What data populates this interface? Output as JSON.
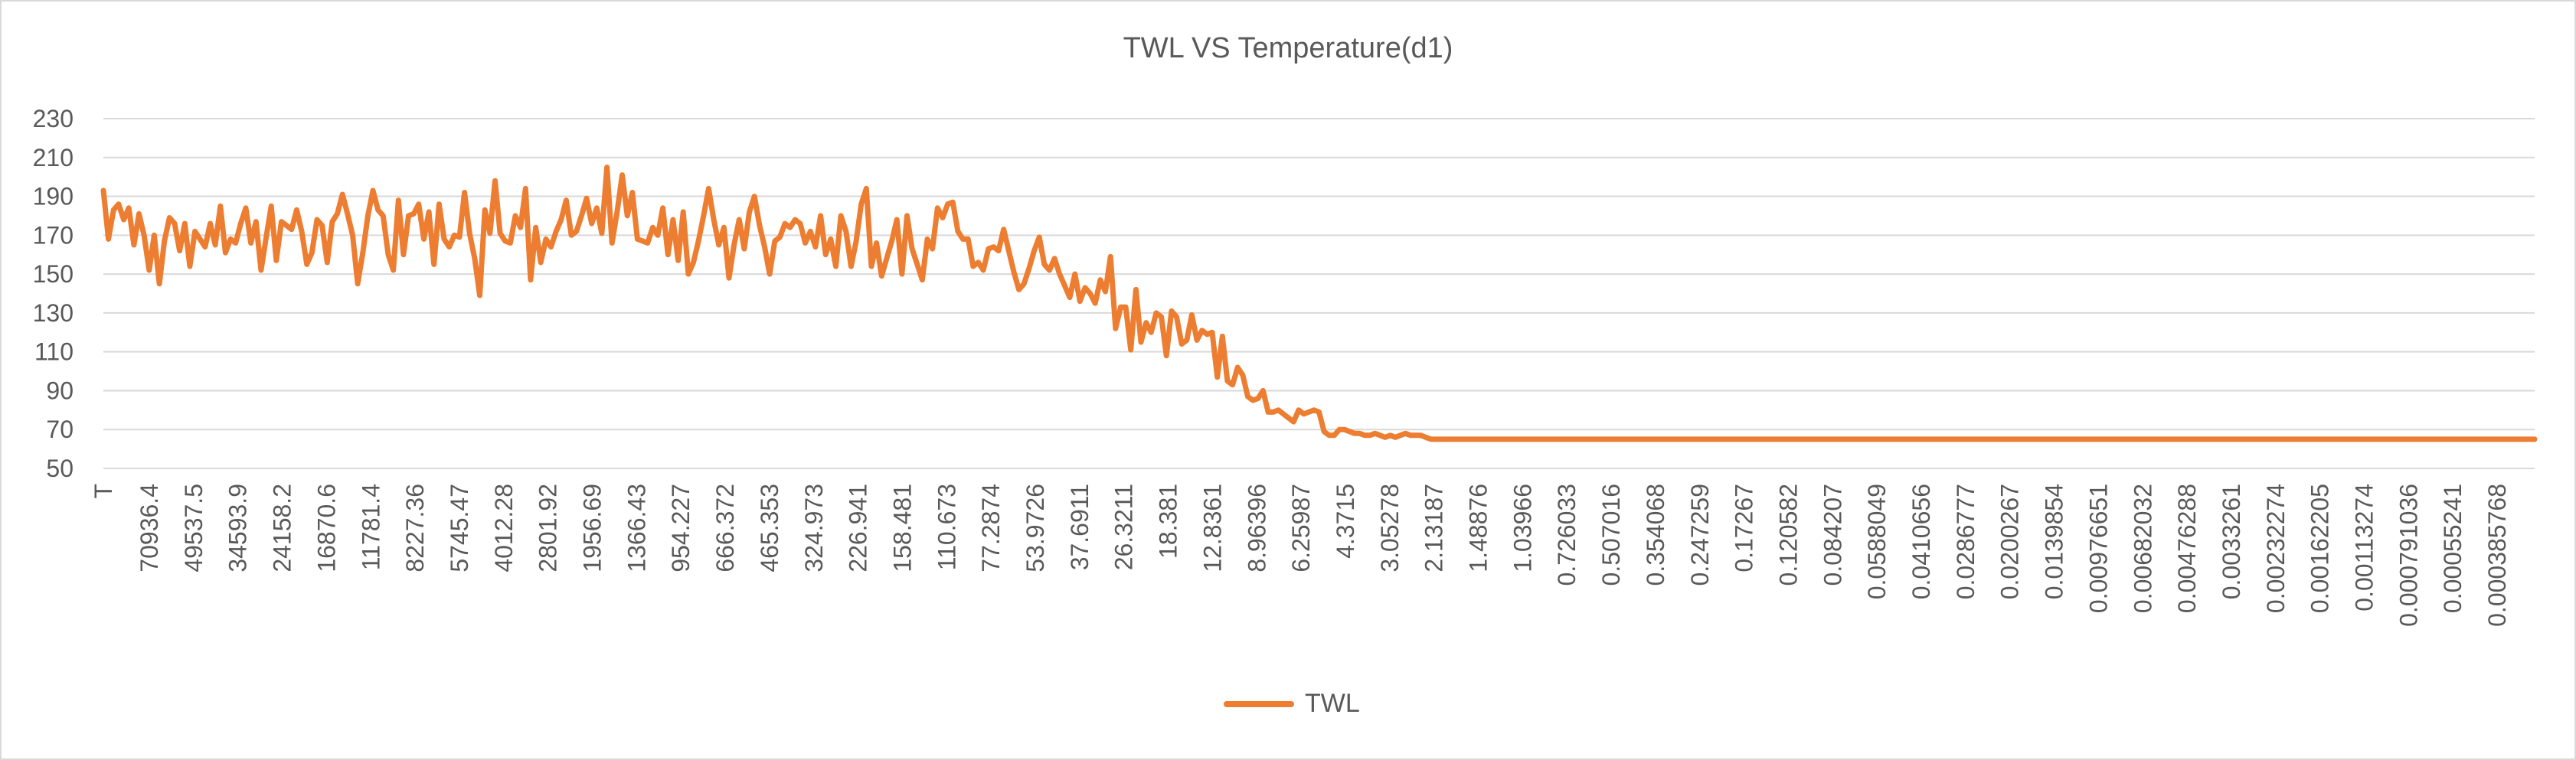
{
  "chart_data": {
    "type": "line",
    "title": "TWL VS Temperature(d1)",
    "xlabel": "",
    "ylabel": "",
    "ylim": [
      50,
      230
    ],
    "yticks": [
      50,
      70,
      90,
      110,
      130,
      150,
      170,
      190,
      210,
      230
    ],
    "grid": true,
    "legend_position": "bottom",
    "line_color": "#ED7D31",
    "grid_color": "#d9d9d9",
    "text_color": "#595959",
    "x_tick_labels": [
      "T",
      "70936.4",
      "49537.5",
      "34593.9",
      "24158.2",
      "16870.6",
      "11781.4",
      "8227.36",
      "5745.47",
      "4012.28",
      "2801.92",
      "1956.69",
      "1366.43",
      "954.227",
      "666.372",
      "465.353",
      "324.973",
      "226.941",
      "158.481",
      "110.673",
      "77.2874",
      "53.9726",
      "37.6911",
      "26.3211",
      "18.381",
      "12.8361",
      "8.96396",
      "6.25987",
      "4.3715",
      "3.05278",
      "2.13187",
      "1.48876",
      "1.03966",
      "0.726033",
      "0.507016",
      "0.354068",
      "0.247259",
      "0.17267",
      "0.120582",
      "0.084207",
      "0.0588049",
      "0.0410656",
      "0.0286777",
      "0.0200267",
      "0.0139854",
      "0.00976651",
      "0.00682032",
      "0.00476288",
      "0.0033261",
      "0.00232274",
      "0.00162205",
      "0.00113274",
      "0.000791036",
      "0.00055241",
      "0.000385768"
    ],
    "series": [
      {
        "name": "TWL",
        "values": [
          193,
          168,
          183,
          186,
          178,
          184,
          165,
          181,
          170,
          152,
          170,
          145,
          167,
          179,
          176,
          162,
          176,
          154,
          172,
          168,
          164,
          176,
          165,
          185,
          161,
          168,
          166,
          176,
          184,
          166,
          177,
          152,
          169,
          185,
          157,
          177,
          175,
          173,
          183,
          172,
          155,
          161,
          178,
          175,
          156,
          177,
          181,
          191,
          181,
          170,
          145,
          161,
          180,
          193,
          183,
          180,
          160,
          152,
          188,
          160,
          180,
          181,
          186,
          168,
          182,
          155,
          186,
          168,
          164,
          170,
          169,
          192,
          171,
          158,
          139,
          183,
          171,
          198,
          171,
          167,
          166,
          180,
          174,
          194,
          147,
          174,
          156,
          168,
          164,
          172,
          178,
          188,
          170,
          172,
          180,
          189,
          176,
          184,
          171,
          205,
          166,
          182,
          201,
          180,
          192,
          168,
          167,
          166,
          174,
          170,
          184,
          160,
          178,
          157,
          182,
          150,
          156,
          167,
          180,
          194,
          178,
          165,
          174,
          148,
          165,
          178,
          163,
          182,
          190,
          175,
          164,
          150,
          167,
          169,
          176,
          174,
          178,
          176,
          166,
          172,
          164,
          180,
          160,
          168,
          154,
          180,
          172,
          154,
          167,
          186,
          194,
          154,
          166,
          149,
          158,
          167,
          178,
          150,
          180,
          163,
          155,
          147,
          168,
          163,
          184,
          179,
          186,
          187,
          172,
          168,
          168,
          154,
          156,
          152,
          163,
          164,
          162,
          173,
          162,
          151,
          142,
          145,
          153,
          162,
          169,
          155,
          152,
          158,
          150,
          144,
          138,
          150,
          136,
          143,
          140,
          135,
          147,
          141,
          159,
          122,
          133,
          133,
          111,
          142,
          115,
          125,
          120,
          130,
          128,
          108,
          131,
          128,
          114,
          116,
          129,
          116,
          121,
          119,
          120,
          97,
          118,
          95,
          93,
          102,
          98,
          87,
          85,
          86,
          90,
          79,
          79,
          80,
          78,
          76,
          74,
          80,
          78,
          79,
          80,
          79,
          69,
          67,
          67,
          70,
          70,
          69,
          68,
          68,
          67,
          67,
          68,
          67,
          66,
          67,
          66,
          67,
          68,
          67,
          67,
          67,
          66,
          65,
          65,
          65,
          65,
          65,
          65,
          65,
          65,
          65,
          65,
          65,
          65,
          65,
          65,
          65,
          65,
          65,
          65,
          65,
          65,
          65,
          65,
          65,
          65,
          65,
          65,
          65,
          65,
          65,
          65,
          65,
          65,
          65,
          65,
          65,
          65,
          65,
          65,
          65,
          65,
          65,
          65,
          65,
          65,
          65,
          65,
          65,
          65,
          65,
          65,
          65,
          65,
          65,
          65,
          65,
          65,
          65,
          65,
          65,
          65,
          65,
          65,
          65,
          65,
          65,
          65,
          65,
          65,
          65,
          65,
          65,
          65,
          65,
          65,
          65,
          65,
          65,
          65,
          65,
          65,
          65,
          65,
          65,
          65,
          65,
          65,
          65,
          65,
          65,
          65,
          65,
          65,
          65,
          65,
          65,
          65,
          65,
          65,
          65,
          65,
          65,
          65,
          65,
          65,
          65,
          65,
          65,
          65,
          65,
          65,
          65,
          65,
          65,
          65,
          65,
          65,
          65,
          65,
          65,
          65,
          65,
          65,
          65,
          65,
          65,
          65,
          65,
          65,
          65,
          65,
          65,
          65,
          65,
          65,
          65,
          65,
          65,
          65,
          65,
          65,
          65,
          65,
          65,
          65,
          65,
          65,
          65,
          65,
          65,
          65,
          65,
          65,
          65,
          65,
          65,
          65,
          65,
          65,
          65,
          65,
          65,
          65,
          65,
          65,
          65,
          65,
          65,
          65,
          65,
          65,
          65,
          65,
          65,
          65,
          65,
          65,
          65,
          65,
          65,
          65,
          65,
          65,
          65,
          65,
          65,
          65,
          65,
          65,
          65,
          65,
          65,
          65,
          65,
          65,
          65,
          65,
          65,
          65,
          65,
          65,
          65,
          65,
          65,
          65,
          65,
          65,
          65,
          65,
          65,
          65,
          65,
          65,
          65,
          65,
          65,
          65,
          65,
          65
        ]
      }
    ]
  }
}
